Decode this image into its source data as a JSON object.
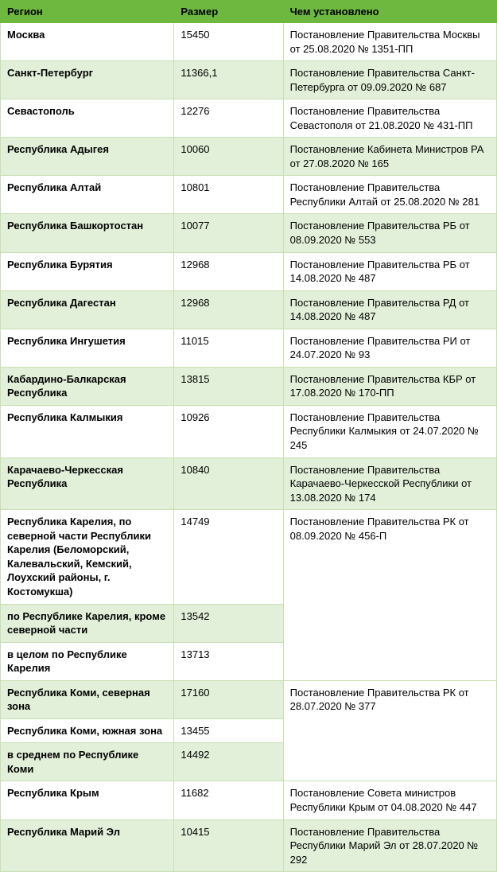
{
  "columns": [
    "Регион",
    "Размер",
    "Чем установлено"
  ],
  "colors": {
    "header_bg": "#6eb83f",
    "row_alt_bg": "#e2efd9",
    "row_bg": "#ffffff",
    "border": "#c8e0b4",
    "text": "#000000"
  },
  "font": {
    "family": "Arial",
    "size_header": 13,
    "size_body": 13,
    "bold_first_col": true
  },
  "rows": [
    {
      "region": "Москва",
      "size": "15450",
      "doc": "Постановление Правительства Москвы от 25.08.2020 № 1351-ПП",
      "shade": "white"
    },
    {
      "region": "Санкт-Петербург",
      "size": "11366,1",
      "doc": "Постановление Правительства Санкт-Петербурга от 09.09.2020 № 687",
      "shade": "green"
    },
    {
      "region": "Севастополь",
      "size": "12276",
      "doc": "Постановление Правительства Севастополя от 21.08.2020 № 431-ПП",
      "shade": "white"
    },
    {
      "region": "Республика Адыгея",
      "size": "10060",
      "doc": "Постановление Кабинета Министров РА от 27.08.2020 № 165",
      "shade": "green"
    },
    {
      "region": "Республика Алтай",
      "size": "10801",
      "doc": "Постановление Правительства Республики Алтай от 25.08.2020 № 281",
      "shade": "white"
    },
    {
      "region": "Республика Башкортостан",
      "size": "10077",
      "doc": "Постановление Правительства РБ от 08.09.2020 № 553",
      "shade": "green"
    },
    {
      "region": "Республика Бурятия",
      "size": "12968",
      "doc": "Постановление Правительства РБ от 14.08.2020 № 487",
      "shade": "white"
    },
    {
      "region": "Республика Дагестан",
      "size": "12968",
      "doc": "Постановление Правительства РД от 14.08.2020 № 487",
      "shade": "green"
    },
    {
      "region": "Республика Ингушетия",
      "size": "11015",
      "doc": "Постановление Правительства РИ от 24.07.2020 № 93",
      "shade": "white"
    },
    {
      "region": "Кабардино-Балкарская Республика",
      "size": "13815",
      "doc": "Постановление Правительства КБР от 17.08.2020 № 170-ПП",
      "shade": "green"
    },
    {
      "region": "Республика Калмыкия",
      "size": "10926",
      "doc": "Постановление Правительства Республики Калмыкия от 24.07.2020 № 245",
      "shade": "white"
    },
    {
      "region": "Карачаево-Черкесская Республика",
      "size": "10840",
      "doc": "Постановление Правительства Карачаево-Черкесской Республики от 13.08.2020 № 174",
      "shade": "green"
    },
    {
      "region": "Республика Карелия, по северной части Республики Карелия (Беломорский, Калевальский, Кемский, Лоухский районы, г. Костомукша)",
      "size": "14749",
      "doc": "Постановление Правительства РК от 08.09.2020 № 456-П",
      "doc_rowspan": 3,
      "shade": "white"
    },
    {
      "region": "по Республике Карелия, кроме северной части",
      "size": "13542",
      "doc_skip": true,
      "shade": "green"
    },
    {
      "region": "в целом по Республике Карелия",
      "size": "13713",
      "doc_skip": true,
      "shade": "white"
    },
    {
      "region": "Республика Коми, северная зона",
      "size": "17160",
      "doc": "Постановление Правительства РК от 28.07.2020 № 377",
      "doc_rowspan": 3,
      "shade": "green"
    },
    {
      "region": "Республика Коми, южная зона",
      "size": "13455",
      "doc_skip": true,
      "shade": "white"
    },
    {
      "region": "в среднем по Республике Коми",
      "size": "14492",
      "doc_skip": true,
      "shade": "green"
    },
    {
      "region": "Республика Крым",
      "size": "11682",
      "doc": "Постановление Совета министров Республики Крым от 04.08.2020 № 447",
      "shade": "white"
    },
    {
      "region": "Республика Марий Эл",
      "size": "10415",
      "doc": "Постановление Правительства Республики Марий Эл от 28.07.2020 № 292",
      "shade": "green"
    }
  ]
}
